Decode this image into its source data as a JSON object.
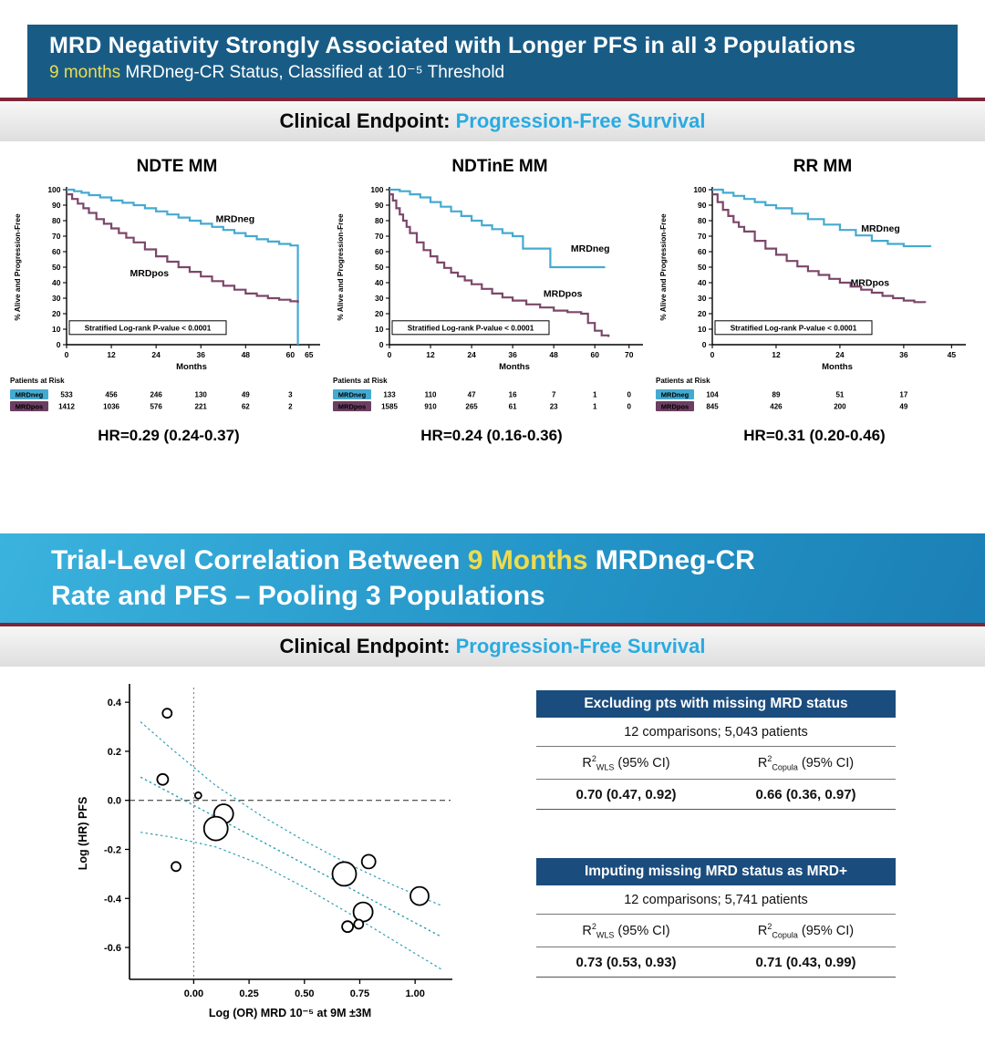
{
  "palette": {
    "slide1_header_bg": "#185C86",
    "slide2_header_gradient": [
      "#3BB3DE",
      "#1B7FB5"
    ],
    "highlight_yellow": "#EDDC4F",
    "endpoint_cyan": "#29ABE2",
    "divider_maroon": "#7E2638",
    "mrdneg_blue": "#45AAD1",
    "mrdpos_plum": "#7B4769",
    "table_header_navy": "#1B4C7E",
    "fit_line_teal": "#2E9FB4"
  },
  "slide1": {
    "title": "MRD Negativity Strongly Associated with Longer PFS in all 3 Populations",
    "subtitle_highlight": "9 months",
    "subtitle_rest": " MRDneg-CR Status, Classified at 10⁻⁵ Threshold",
    "endpoint_label": "Clinical Endpoint:",
    "endpoint_value": "Progression-Free Survival"
  },
  "slide2": {
    "title_line1_pre": "Trial-Level Correlation Between ",
    "title_line1_highlight": "9 Months",
    "title_line1_post": " MRDneg-CR",
    "title_line2": "Rate and PFS – Pooling 3 Populations",
    "endpoint_label": "Clinical Endpoint:",
    "endpoint_value": "Progression-Free Survival"
  },
  "chart_data": [
    {
      "type": "line",
      "title": "NDTE MM",
      "xlabel": "Months",
      "ylabel": "% Alive and Progression-Free",
      "xlim": [
        0,
        67
      ],
      "ylim": [
        0,
        100
      ],
      "xticks": [
        0,
        12,
        24,
        36,
        48,
        60,
        65
      ],
      "yticks": [
        0,
        10,
        20,
        30,
        40,
        50,
        60,
        70,
        80,
        90,
        100
      ],
      "annotation": "Stratified Log-rank P-value < 0.0001",
      "annotation_y": 11,
      "series": [
        {
          "name": "MRDneg",
          "color": "#45AAD1",
          "label_at": [
            40,
            79
          ],
          "x": [
            0,
            2,
            4,
            6,
            9,
            12,
            15,
            18,
            21,
            24,
            27,
            30,
            33,
            36,
            39,
            42,
            45,
            48,
            51,
            54,
            57,
            60,
            62,
            62
          ],
          "y": [
            100,
            99,
            98,
            96.5,
            95,
            93,
            91.5,
            90,
            88,
            86,
            84,
            82,
            80,
            78,
            76,
            74,
            72,
            70,
            68,
            66.5,
            65,
            64,
            63,
            0
          ]
        },
        {
          "name": "MRDpos",
          "color": "#7B4769",
          "label_at": [
            17,
            44
          ],
          "x": [
            0,
            1.5,
            3,
            4.5,
            6,
            8,
            10,
            12,
            14,
            16,
            18,
            21,
            24,
            27,
            30,
            33,
            36,
            39,
            42,
            45,
            48,
            51,
            54,
            57,
            60,
            62
          ],
          "y": [
            97,
            94,
            91,
            88,
            85,
            81,
            78,
            75,
            72,
            69,
            66,
            61.5,
            57,
            53.5,
            50,
            47,
            44,
            41,
            38,
            35.5,
            33,
            31.5,
            30,
            29,
            28,
            27
          ]
        }
      ],
      "risk_table": {
        "title": "Patients at Risk",
        "at_x": [
          0,
          12,
          24,
          36,
          48,
          60
        ],
        "rows": [
          {
            "label": "MRDneg",
            "color": "#45AAD1",
            "values": [
              "533",
              "456",
              "246",
              "130",
              "49",
              "3"
            ]
          },
          {
            "label": "MRDpos",
            "color": "#6B3E62",
            "values": [
              "1412",
              "1036",
              "576",
              "221",
              "62",
              "2"
            ]
          }
        ]
      },
      "hr_text": "HR=0.29 (0.24-0.37)"
    },
    {
      "type": "line",
      "title": "NDTinE MM",
      "xlabel": "Months",
      "ylabel": "% Alive and Progression-Free",
      "xlim": [
        0,
        73
      ],
      "ylim": [
        0,
        100
      ],
      "xticks": [
        0,
        12,
        24,
        36,
        48,
        60,
        70
      ],
      "yticks": [
        0,
        10,
        20,
        30,
        40,
        50,
        60,
        70,
        80,
        90,
        100
      ],
      "annotation": "Stratified Log-rank P-value < 0.0001",
      "annotation_y": 11,
      "series": [
        {
          "name": "MRDneg",
          "color": "#45AAD1",
          "label_at": [
            53,
            60
          ],
          "x": [
            0,
            3,
            6,
            9,
            12,
            15,
            18,
            21,
            24,
            27,
            30,
            33,
            36,
            39,
            47,
            63
          ],
          "y": [
            100,
            99,
            97,
            95,
            92,
            89,
            86,
            83,
            80,
            77,
            74.5,
            72,
            70,
            62,
            50,
            50
          ]
        },
        {
          "name": "MRDpos",
          "color": "#7B4769",
          "label_at": [
            45,
            31
          ],
          "x": [
            0,
            1,
            2,
            3,
            4,
            5,
            6,
            8,
            10,
            12,
            14,
            16,
            18,
            20,
            22,
            24,
            27,
            30,
            33,
            36,
            40,
            44,
            48,
            52,
            56,
            58,
            60,
            62,
            64
          ],
          "y": [
            97,
            93,
            88,
            84,
            80,
            76,
            72,
            66,
            61,
            57,
            53,
            49.5,
            46.5,
            44,
            41.5,
            39,
            36,
            33,
            30.5,
            28.5,
            26,
            24,
            22,
            21,
            20,
            14,
            9,
            6,
            5
          ]
        }
      ],
      "risk_table": {
        "title": "Patients at Risk",
        "at_x": [
          0,
          12,
          24,
          36,
          48,
          60,
          70
        ],
        "rows": [
          {
            "label": "MRDneg",
            "color": "#45AAD1",
            "values": [
              "133",
              "110",
              "47",
              "16",
              "7",
              "1",
              "0"
            ]
          },
          {
            "label": "MRDpos",
            "color": "#6B3E62",
            "values": [
              "1585",
              "910",
              "265",
              "61",
              "23",
              "1",
              "0"
            ]
          }
        ]
      },
      "hr_text": "HR=0.24 (0.16-0.36)"
    },
    {
      "type": "line",
      "title": "RR MM",
      "xlabel": "Months",
      "ylabel": "% Alive and Progression-Free",
      "xlim": [
        0,
        47
      ],
      "ylim": [
        0,
        100
      ],
      "xticks": [
        0,
        12,
        24,
        36,
        45
      ],
      "yticks": [
        0,
        10,
        20,
        30,
        40,
        50,
        60,
        70,
        80,
        90,
        100
      ],
      "annotation": "Stratified Log-rank P-value < 0.0001",
      "annotation_y": 11,
      "series": [
        {
          "name": "MRDneg",
          "color": "#45AAD1",
          "label_at": [
            28,
            73
          ],
          "x": [
            0,
            2,
            4,
            6,
            8,
            10,
            12,
            15,
            18,
            21,
            24,
            27,
            30,
            33,
            36,
            41
          ],
          "y": [
            100,
            98,
            96,
            94,
            92,
            90,
            88,
            84.5,
            81,
            77.5,
            74,
            70.5,
            67,
            65,
            63.5,
            63
          ]
        },
        {
          "name": "MRDpos",
          "color": "#7B4769",
          "label_at": [
            26,
            38
          ],
          "x": [
            0,
            1,
            2,
            3,
            4,
            5,
            6,
            8,
            10,
            12,
            14,
            16,
            18,
            20,
            22,
            24,
            26,
            28,
            30,
            32,
            34,
            36,
            38,
            40
          ],
          "y": [
            97,
            92,
            87,
            83,
            79,
            76,
            73,
            67,
            62,
            58,
            54,
            50.5,
            47.5,
            45,
            42.5,
            40,
            37.5,
            35.5,
            33.5,
            31.5,
            30,
            28.5,
            27.5,
            27
          ]
        }
      ],
      "risk_table": {
        "title": "Patients at Risk",
        "at_x": [
          0,
          12,
          24,
          36
        ],
        "rows": [
          {
            "label": "MRDneg",
            "color": "#45AAD1",
            "values": [
              "104",
              "89",
              "51",
              "17"
            ]
          },
          {
            "label": "MRDpos",
            "color": "#6B3E62",
            "values": [
              "845",
              "426",
              "200",
              "49"
            ]
          }
        ]
      },
      "hr_text": "HR=0.31 (0.20-0.46)"
    },
    {
      "type": "scatter",
      "xlabel": "Log (OR) MRD 10⁻⁵ at 9M ±3M",
      "ylabel": "Log (HR) PFS",
      "xlim": [
        -0.29,
        1.16
      ],
      "ylim": [
        -0.73,
        0.46
      ],
      "xticks": [
        {
          "v": 0,
          "label": "0.00"
        },
        {
          "v": 0.25,
          "label": "0.25"
        },
        {
          "v": 0.5,
          "label": "0.50"
        },
        {
          "v": 0.75,
          "label": "0.75"
        },
        {
          "v": 1.0,
          "label": "1.00"
        }
      ],
      "yticks": [
        {
          "v": 0.4,
          "label": "0.4"
        },
        {
          "v": 0.2,
          "label": "0.2"
        },
        {
          "v": 0.0,
          "label": "0.0"
        },
        {
          "v": -0.2,
          "label": "-0.2"
        },
        {
          "v": -0.4,
          "label": "-0.4"
        },
        {
          "v": -0.6,
          "label": "-0.6"
        }
      ],
      "line_color": "#2E9FB4",
      "points": [
        {
          "x": -0.12,
          "y": 0.355,
          "r": 5
        },
        {
          "x": -0.14,
          "y": 0.085,
          "r": 6
        },
        {
          "x": 0.02,
          "y": 0.02,
          "r": 3.5
        },
        {
          "x": -0.08,
          "y": -0.27,
          "r": 5
        },
        {
          "x": 0.135,
          "y": -0.055,
          "r": 10.5
        },
        {
          "x": 0.1,
          "y": -0.115,
          "r": 13
        },
        {
          "x": 0.68,
          "y": -0.3,
          "r": 13
        },
        {
          "x": 0.79,
          "y": -0.25,
          "r": 7.5
        },
        {
          "x": 0.765,
          "y": -0.455,
          "r": 10.5
        },
        {
          "x": 0.695,
          "y": -0.515,
          "r": 6
        },
        {
          "x": 0.745,
          "y": -0.505,
          "r": 5
        },
        {
          "x": 1.02,
          "y": -0.39,
          "r": 10
        }
      ],
      "fit_line": {
        "x": [
          -0.24,
          1.12
        ],
        "y": [
          0.095,
          -0.557
        ]
      },
      "ci_upper": {
        "x": [
          -0.24,
          -0.1,
          0.1,
          0.3,
          0.5,
          0.7,
          0.9,
          1.12
        ],
        "y": [
          0.32,
          0.21,
          0.06,
          -0.06,
          -0.165,
          -0.26,
          -0.345,
          -0.43
        ]
      },
      "ci_lower": {
        "x": [
          -0.24,
          -0.1,
          0.1,
          0.3,
          0.5,
          0.7,
          0.9,
          1.12
        ],
        "y": [
          -0.13,
          -0.15,
          -0.19,
          -0.26,
          -0.355,
          -0.46,
          -0.57,
          -0.69
        ]
      }
    }
  ],
  "tables": [
    {
      "header": "Excluding pts with missing MRD status",
      "subheader": "12 comparisons; 5,043 patients",
      "col1": {
        "pre": "R",
        "sup": "2",
        "sub": "WLS",
        "post": " (95% CI)"
      },
      "col2": {
        "pre": "R",
        "sup": "2",
        "sub": "Copula",
        "post": " (95% CI)"
      },
      "val1": "0.70 (0.47, 0.92)",
      "val2": "0.66 (0.36, 0.97)"
    },
    {
      "header": "Imputing missing MRD status as MRD+",
      "subheader": "12 comparisons; 5,741 patients",
      "col1": {
        "pre": "R",
        "sup": "2",
        "sub": "WLS",
        "post": " (95% CI)"
      },
      "col2": {
        "pre": "R",
        "sup": "2",
        "sub": "Copula",
        "post": " (95% CI)"
      },
      "val1": "0.73 (0.53, 0.93)",
      "val2": "0.71 (0.43, 0.99)"
    }
  ]
}
